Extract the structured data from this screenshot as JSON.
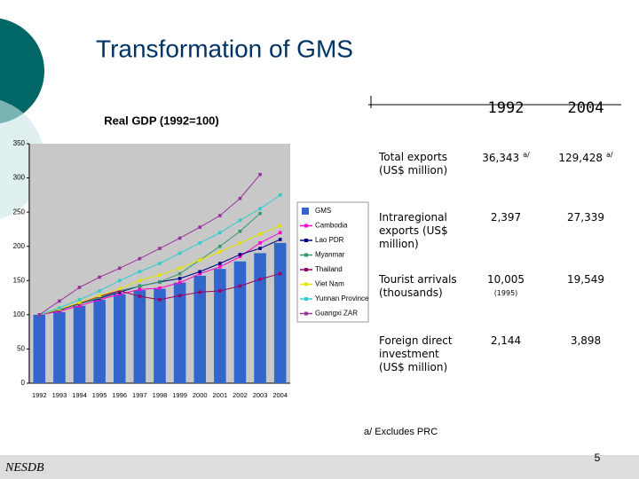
{
  "slide": {
    "title": "Transformation of GMS",
    "footnote": "a/ Excludes PRC",
    "footer": "NESDB",
    "page": "5"
  },
  "chart_data": {
    "type": "bar-line",
    "title": "Real GDP (1992=100)",
    "categories": [
      "1992",
      "1993",
      "1994",
      "1995",
      "1996",
      "1997",
      "1998",
      "1999",
      "2000",
      "2001",
      "2002",
      "2003",
      "2004"
    ],
    "ylim": [
      0,
      350
    ],
    "yticks": [
      0,
      50,
      100,
      150,
      200,
      250,
      300,
      350
    ],
    "series": [
      {
        "name": "GMS",
        "kind": "bar",
        "color": "#3366cc",
        "values": [
          100,
          104,
          113,
          122,
          130,
          136,
          138,
          147,
          157,
          167,
          178,
          190,
          205
        ]
      },
      {
        "name": "Cambodia",
        "kind": "line",
        "color": "#ff00cc",
        "values": [
          100,
          105,
          113,
          122,
          130,
          137,
          139,
          147,
          160,
          170,
          185,
          205,
          220
        ]
      },
      {
        "name": "Lao PDR",
        "kind": "line",
        "color": "#000080",
        "values": [
          100,
          107,
          116,
          124,
          133,
          142,
          148,
          153,
          163,
          175,
          188,
          197,
          210
        ]
      },
      {
        "name": "Myanmar",
        "kind": "line",
        "color": "#339966",
        "values": [
          100,
          108,
          116,
          125,
          135,
          142,
          148,
          160,
          180,
          200,
          222,
          248,
          null
        ]
      },
      {
        "name": "Thailand",
        "kind": "line",
        "color": "#990066",
        "values": [
          100,
          108,
          117,
          127,
          135,
          127,
          122,
          128,
          133,
          135,
          142,
          152,
          160
        ]
      },
      {
        "name": "Viet Nam",
        "kind": "line",
        "color": "#e6e600",
        "values": [
          100,
          108,
          118,
          128,
          138,
          150,
          158,
          168,
          180,
          192,
          205,
          218,
          230
        ]
      },
      {
        "name": "Yunnan Province",
        "kind": "line",
        "color": "#33cccc",
        "values": [
          100,
          110,
          122,
          135,
          150,
          163,
          175,
          190,
          205,
          220,
          238,
          255,
          275
        ]
      },
      {
        "name": "Guangxi ZAR",
        "kind": "line",
        "color": "#993399",
        "values": [
          100,
          120,
          140,
          155,
          168,
          182,
          197,
          212,
          228,
          245,
          270,
          305,
          null
        ]
      }
    ]
  },
  "table": {
    "columns": [
      "1992",
      "2004"
    ],
    "rows": [
      {
        "label": "Total exports (US$ million)",
        "cells": [
          {
            "text": "36,343",
            "note": "a/"
          },
          {
            "text": "129,428",
            "note": "a/"
          }
        ]
      },
      {
        "label": "Intraregional exports (US$ million)",
        "cells": [
          {
            "text": "2,397"
          },
          {
            "text": "27,339"
          }
        ]
      },
      {
        "label": "Tourist arrivals (thousands)",
        "cells": [
          {
            "text": "10,005",
            "note": "(1995)"
          },
          {
            "text": "19,549"
          }
        ]
      },
      {
        "label": "Foreign direct investment (US$ million)",
        "cells": [
          {
            "text": "2,144"
          },
          {
            "text": "3,898"
          }
        ]
      }
    ]
  }
}
